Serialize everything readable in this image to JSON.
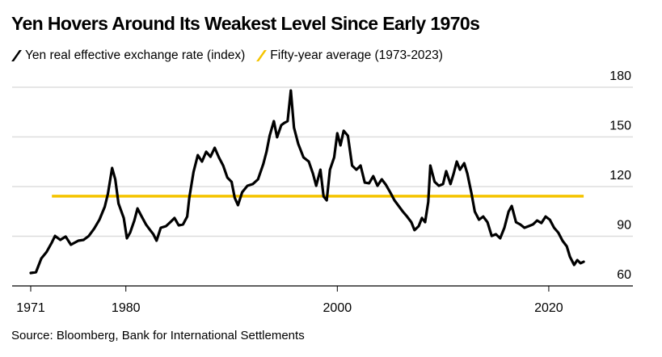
{
  "header": {
    "title": "Yen Hovers Around Its Weakest Level Since Early 1970s"
  },
  "legend": [
    {
      "label": "Yen real effective exchange rate (index)",
      "color": "#000000"
    },
    {
      "label": "Fifty-year average (1973-2023)",
      "color": "#F5C400"
    }
  ],
  "footer": {
    "source": "Source: Bloomberg, Bank for International Settlements"
  },
  "chart_data": {
    "type": "line",
    "title": "Yen Hovers Around Its Weakest Level Since Early 1970s",
    "xlabel": "",
    "ylabel": "",
    "xlim": [
      1969.2,
      2027.5
    ],
    "ylim": [
      60,
      180
    ],
    "x_ticks": [
      1971,
      1980,
      2000,
      2020
    ],
    "x_tick_labels": [
      "1971",
      "1980",
      "2000",
      "2020"
    ],
    "y_ticks": [
      60,
      90,
      120,
      150,
      180
    ],
    "y_tick_labels": [
      "60",
      "90",
      "120",
      "150",
      "180"
    ],
    "grid": true,
    "legend_position": "top-left",
    "series": [
      {
        "name": "Yen real effective exchange rate (index)",
        "color": "#000000",
        "x": [
          1971.0,
          1971.5,
          1972.0,
          1972.5,
          1973.0,
          1973.3,
          1973.8,
          1974.3,
          1974.8,
          1975.5,
          1976.0,
          1976.5,
          1977.0,
          1977.5,
          1978.0,
          1978.3,
          1978.7,
          1979.0,
          1979.3,
          1979.8,
          1980.1,
          1980.4,
          1980.8,
          1981.1,
          1981.5,
          1981.9,
          1982.3,
          1982.6,
          1982.9,
          1983.3,
          1983.8,
          1984.2,
          1984.6,
          1985.0,
          1985.4,
          1985.8,
          1986.0,
          1986.4,
          1986.8,
          1987.2,
          1987.6,
          1988.0,
          1988.4,
          1988.8,
          1989.2,
          1989.6,
          1990.0,
          1990.3,
          1990.6,
          1991.0,
          1991.5,
          1992.0,
          1992.5,
          1993.0,
          1993.3,
          1993.6,
          1994.0,
          1994.3,
          1994.7,
          1995.0,
          1995.3,
          1995.6,
          1995.9,
          1996.3,
          1996.8,
          1997.3,
          1997.7,
          1998.0,
          1998.4,
          1998.7,
          1999.0,
          1999.3,
          1999.7,
          2000.0,
          2000.3,
          2000.6,
          2001.0,
          2001.4,
          2001.8,
          2002.2,
          2002.6,
          2003.0,
          2003.4,
          2003.8,
          2004.2,
          2004.6,
          2005.0,
          2005.4,
          2005.8,
          2006.2,
          2006.6,
          2007.0,
          2007.3,
          2007.7,
          2008.0,
          2008.3,
          2008.6,
          2008.8,
          2009.2,
          2009.6,
          2010.0,
          2010.3,
          2010.7,
          2011.0,
          2011.3,
          2011.6,
          2012.0,
          2012.3,
          2012.7,
          2013.0,
          2013.4,
          2013.8,
          2014.2,
          2014.6,
          2015.0,
          2015.4,
          2015.8,
          2016.2,
          2016.5,
          2016.9,
          2017.3,
          2017.7,
          2018.1,
          2018.5,
          2018.9,
          2019.3,
          2019.7,
          2020.1,
          2020.5,
          2020.9,
          2021.3,
          2021.7,
          2022.0,
          2022.4,
          2022.7,
          2023.0,
          2023.3
        ],
        "values": [
          67.8,
          68.3,
          76.6,
          80.5,
          86.3,
          90.2,
          87.8,
          89.8,
          84.9,
          87.3,
          87.8,
          90.2,
          94.6,
          100.0,
          107.8,
          115.6,
          131.2,
          124.4,
          109.8,
          101.0,
          88.8,
          92.2,
          99.5,
          106.8,
          101.9,
          97.1,
          93.7,
          91.2,
          87.3,
          95.1,
          96.1,
          98.5,
          101.0,
          96.6,
          97.1,
          101.9,
          113.2,
          128.8,
          139.0,
          135.1,
          141.0,
          138.0,
          143.4,
          137.6,
          132.7,
          125.4,
          122.9,
          113.2,
          108.8,
          116.6,
          120.5,
          121.5,
          124.4,
          133.7,
          141.0,
          150.7,
          159.5,
          149.8,
          157.1,
          158.5,
          159.5,
          178.0,
          155.6,
          145.9,
          137.6,
          135.1,
          127.8,
          120.5,
          130.2,
          114.1,
          111.7,
          130.2,
          137.6,
          152.2,
          144.9,
          153.7,
          150.7,
          132.7,
          130.2,
          132.7,
          122.4,
          122.0,
          126.3,
          120.5,
          124.4,
          121.0,
          116.6,
          111.7,
          108.3,
          104.9,
          101.9,
          98.5,
          93.7,
          96.1,
          101.0,
          98.5,
          110.7,
          132.7,
          122.9,
          120.5,
          121.5,
          129.3,
          121.5,
          127.8,
          135.1,
          130.2,
          134.1,
          127.8,
          115.6,
          104.9,
          100.0,
          101.9,
          98.5,
          90.2,
          91.2,
          88.8,
          95.1,
          104.9,
          108.3,
          98.5,
          97.1,
          95.1,
          96.1,
          97.1,
          99.5,
          98.0,
          101.9,
          100.0,
          95.1,
          92.2,
          87.3,
          83.9,
          77.6,
          72.7,
          75.6,
          73.7,
          74.6
        ]
      },
      {
        "name": "Fifty-year average (1973-2023)",
        "color": "#F5C400",
        "x": [
          1973.0,
          2023.3
        ],
        "values": [
          114.2,
          114.2
        ]
      }
    ]
  }
}
